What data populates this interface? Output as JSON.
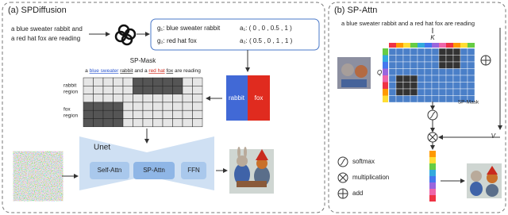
{
  "panel_a": {
    "title": "(a) SPDiffusion",
    "prompt_lines": [
      "a blue sweater rabbit and",
      "a red hat fox are reading"
    ],
    "groups": [
      {
        "g": "g₁: blue sweater rabbit",
        "a": "a₁: ( 0 , 0 , 0.5 , 1 )"
      },
      {
        "g": "g₂: red hat fox",
        "a": "a₂: ( 0.5 , 0 , 1 , 1 )"
      }
    ],
    "blocks": [
      "rabbit",
      "fox"
    ],
    "mask": {
      "title": "SP-Mask",
      "caption_parts": [
        "a ",
        "blue sweater",
        " ",
        "rabbit",
        " and a ",
        "red hat",
        " ",
        "fox",
        " are reading"
      ],
      "row_labels": [
        [
          "rabbit",
          "region"
        ],
        [
          "fox",
          "region"
        ]
      ]
    },
    "unet": {
      "title": "Unet",
      "modules": [
        "Self-Attn",
        "SP-Attn",
        "FFN"
      ]
    }
  },
  "panel_b": {
    "title": "(b) SP-Attn",
    "prompt": "a blue sweater rabbit and a red hat fox are reading",
    "k": "K",
    "q": "Q",
    "v": "V",
    "mask_label": "SP-Mask",
    "legend": [
      "softmax",
      "multiplication",
      "add"
    ]
  }
}
